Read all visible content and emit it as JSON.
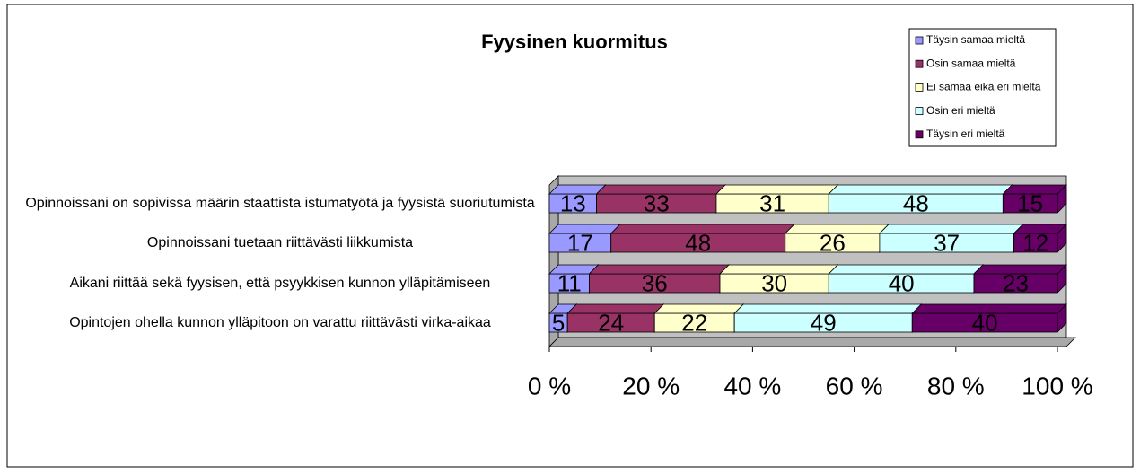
{
  "chart_data": {
    "type": "bar",
    "orientation": "horizontal",
    "stacking": "percent",
    "title": "Fyysinen kuormitus",
    "categories": [
      "Opinnoissani on sopivissa määrin staattista istumatyötä ja fyysistä suoriutumista",
      "Opinnoissani tuetaan riittävästi liikkumista",
      "Aikani riittää sekä fyysisen, että psyykkisen kunnon ylläpitämiseen",
      "Opintojen ohella kunnon ylläpitoon on varattu riittävästi virka-aikaa"
    ],
    "series": [
      {
        "name": "Täysin samaa mieltä",
        "color": "#9999ff",
        "values": [
          13,
          17,
          11,
          5
        ]
      },
      {
        "name": "Osin samaa mieltä",
        "color": "#993366",
        "values": [
          33,
          48,
          36,
          24
        ]
      },
      {
        "name": "Ei samaa eikä eri mieltä",
        "color": "#ffffcc",
        "values": [
          31,
          26,
          30,
          22
        ]
      },
      {
        "name": "Osin eri mieltä",
        "color": "#ccffff",
        "values": [
          48,
          37,
          40,
          49
        ]
      },
      {
        "name": "Täysin eri mieltä",
        "color": "#660066",
        "values": [
          15,
          12,
          23,
          40
        ]
      }
    ],
    "xlim": [
      0,
      100
    ],
    "xticks": [
      {
        "value": 0,
        "label": "0 %"
      },
      {
        "value": 20,
        "label": "20 %"
      },
      {
        "value": 40,
        "label": "40 %"
      },
      {
        "value": 60,
        "label": "60 %"
      },
      {
        "value": 80,
        "label": "80 %"
      },
      {
        "value": 100,
        "label": "100 %"
      }
    ],
    "legend": "top-right"
  }
}
